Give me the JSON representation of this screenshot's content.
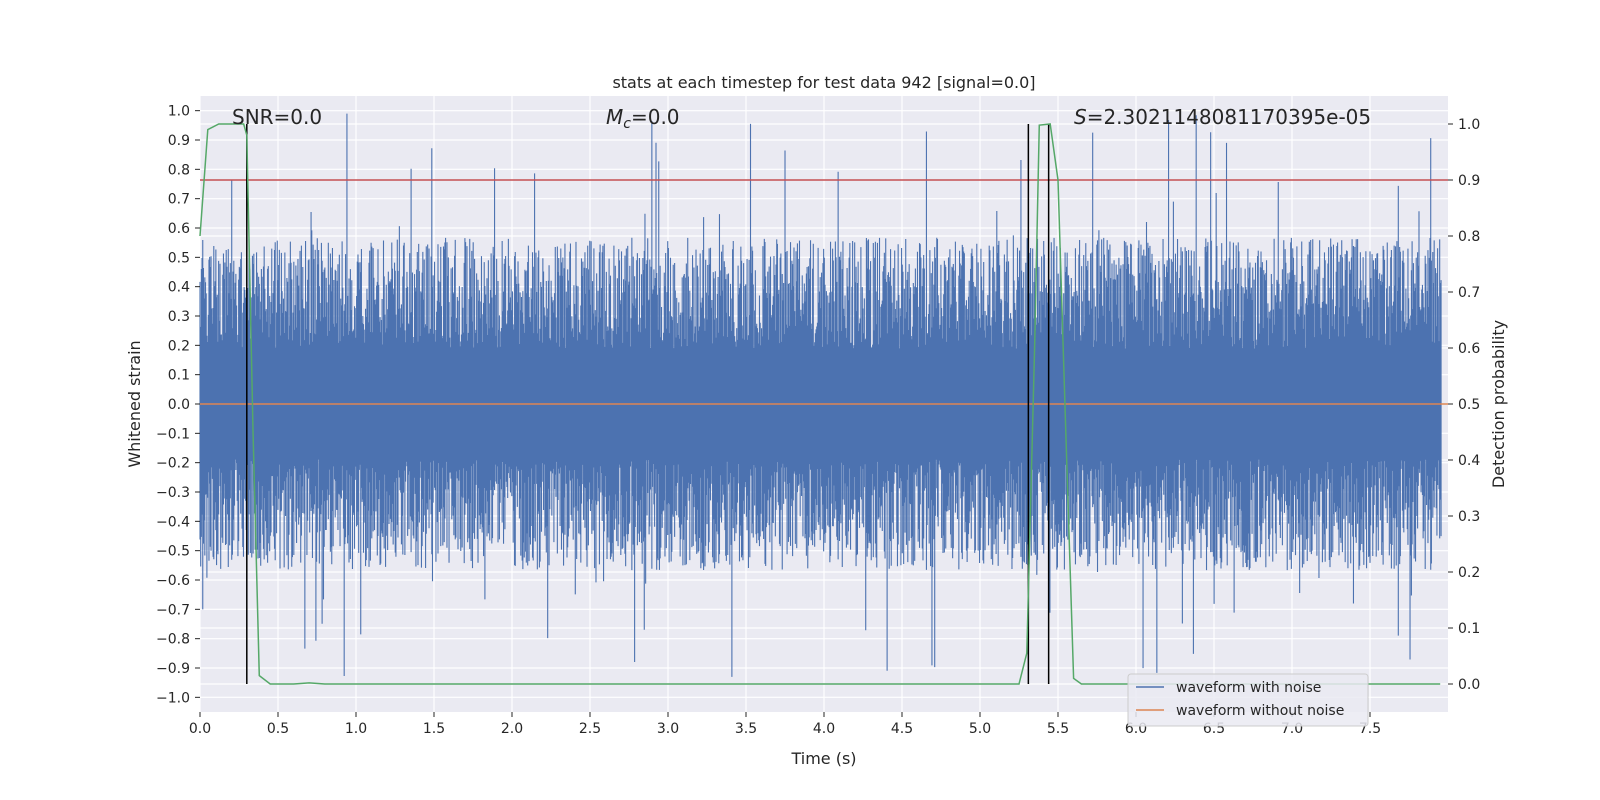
{
  "chart_data": {
    "type": "line",
    "title": "stats at each timestep for test data 942 [signal=0.0]",
    "xlabel": "Time (s)",
    "ylabel_left": "Whitened strain",
    "ylabel_right": "Detection probability",
    "xlim": [
      0.0,
      8.0
    ],
    "ylim_left": [
      -1.05,
      1.05
    ],
    "ylim_right": [
      -0.05,
      1.05
    ],
    "x_ticks": [
      0.0,
      0.5,
      1.0,
      1.5,
      2.0,
      2.5,
      3.0,
      3.5,
      4.0,
      4.5,
      5.0,
      5.5,
      6.0,
      6.5,
      7.0,
      7.5
    ],
    "x_tick_labels": [
      "0.0",
      "0.5",
      "1.0",
      "1.5",
      "2.0",
      "2.5",
      "3.0",
      "3.5",
      "4.0",
      "4.5",
      "5.0",
      "5.5",
      "6.0",
      "6.5",
      "7.0",
      "7.5"
    ],
    "y_left_ticks": [
      1.0,
      0.9,
      0.8,
      0.7,
      0.6,
      0.5,
      0.4,
      0.3,
      0.2,
      0.1,
      0.0,
      -0.1,
      -0.2,
      -0.3,
      -0.4,
      -0.5,
      -0.6,
      -0.7,
      -0.8,
      -0.9,
      -1.0
    ],
    "y_left_tick_labels": [
      "1.0",
      "0.9",
      "0.8",
      "0.7",
      "0.6",
      "0.5",
      "0.4",
      "0.3",
      "0.2",
      "0.1",
      "0.0",
      "−0.1",
      "−0.2",
      "−0.3",
      "−0.4",
      "−0.5",
      "−0.6",
      "−0.7",
      "−0.8",
      "−0.9",
      "−1.0"
    ],
    "y_right_ticks": [
      1.0,
      0.9,
      0.8,
      0.7,
      0.6,
      0.5,
      0.4,
      0.3,
      0.2,
      0.1,
      0.0
    ],
    "y_right_tick_labels": [
      "1.0",
      "0.9",
      "0.8",
      "0.7",
      "0.6",
      "0.5",
      "0.4",
      "0.3",
      "0.2",
      "0.1",
      "0.0"
    ],
    "grid": true,
    "background": "#eaeaf2",
    "annotations": {
      "snr": "SNR=0.0",
      "mc_symbol": "M",
      "mc_sub": "c",
      "mc_value": "=0.0",
      "s_symbol": "S",
      "s_value": "=2.3021148081170395e-05"
    },
    "series": [
      {
        "name": "waveform with noise",
        "color": "#4c72b0",
        "axis": "left",
        "description_kind": "noise",
        "envelope": {
          "upper_mean": 0.42,
          "upper_max": 1.0,
          "lower_mean": -0.42,
          "lower_min": -0.95
        }
      },
      {
        "name": "waveform without noise",
        "color": "#dd8452",
        "axis": "left",
        "x": [
          0.0,
          8.0
        ],
        "y": [
          0.0,
          0.0
        ]
      },
      {
        "color": "#55a868",
        "axis": "right",
        "x": [
          0.0,
          0.05,
          0.12,
          0.28,
          0.3,
          0.34,
          0.38,
          0.45,
          0.6,
          0.7,
          0.8,
          1.5,
          3.0,
          4.5,
          5.25,
          5.3,
          5.35,
          5.38,
          5.45,
          5.5,
          5.55,
          5.6,
          5.65,
          6.0,
          7.0,
          7.95
        ],
        "y": [
          0.8,
          0.99,
          1.0,
          1.0,
          0.98,
          0.45,
          0.015,
          0.0,
          0.0,
          0.002,
          0.0,
          0.0,
          0.0,
          0.0,
          0.0,
          0.055,
          0.6,
          0.998,
          1.0,
          0.9,
          0.45,
          0.01,
          0.0,
          0.0,
          0.0,
          0.0
        ]
      },
      {
        "color": "#c44e52",
        "axis": "right",
        "x": [
          0.0,
          8.0
        ],
        "y": [
          0.9,
          0.9
        ]
      }
    ],
    "vertical_lines": [
      {
        "x": 0.3,
        "y_from": 0.0,
        "y_to": 1.0,
        "color": "#000000"
      },
      {
        "x": 5.31,
        "y_from": 0.0,
        "y_to": 1.0,
        "color": "#000000"
      },
      {
        "x": 5.44,
        "y_from": 0.0,
        "y_to": 1.0,
        "color": "#000000"
      }
    ],
    "legend": {
      "placement": "lower-right",
      "entries": [
        {
          "label": "waveform with noise",
          "color": "#4c72b0"
        },
        {
          "label": "waveform without noise",
          "color": "#dd8452"
        }
      ]
    }
  }
}
